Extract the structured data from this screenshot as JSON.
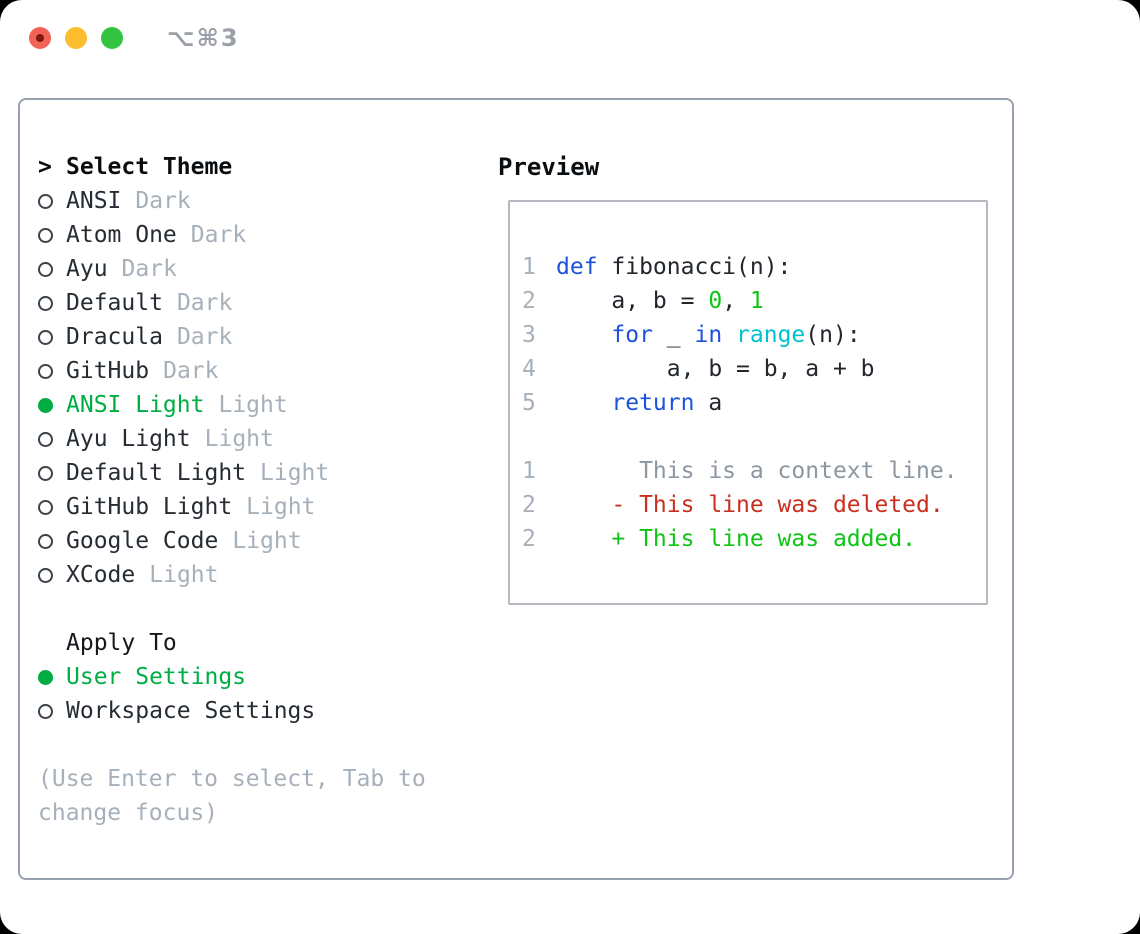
{
  "window": {
    "title_shortcut": "⌥⌘3"
  },
  "colors": {
    "ui_green": "#00ad43",
    "code_green": "#0ec414",
    "keyword_blue": "#1d52db",
    "function_cyan": "#00c2cb",
    "deleted_red": "#c92f1e",
    "muted_gray": "#a6b0ba",
    "context_gray": "#8d97a1",
    "text_dark": "#22272e",
    "panel_border": "#98a2ae",
    "preview_border": "#b4bac0",
    "traffic_red": "#f26257",
    "traffic_yellow": "#fcbd2e",
    "traffic_green": "#32c440"
  },
  "theme_selector": {
    "cursor": ">",
    "title": "Select Theme",
    "items": [
      {
        "name": "ANSI",
        "variant": "Dark",
        "selected": false
      },
      {
        "name": "Atom One",
        "variant": "Dark",
        "selected": false
      },
      {
        "name": "Ayu",
        "variant": "Dark",
        "selected": false
      },
      {
        "name": "Default",
        "variant": "Dark",
        "selected": false
      },
      {
        "name": "Dracula",
        "variant": "Dark",
        "selected": false
      },
      {
        "name": "GitHub",
        "variant": "Dark",
        "selected": false
      },
      {
        "name": "ANSI Light",
        "variant": "Light",
        "selected": true
      },
      {
        "name": "Ayu Light",
        "variant": "Light",
        "selected": false
      },
      {
        "name": "Default Light",
        "variant": "Light",
        "selected": false
      },
      {
        "name": "GitHub Light",
        "variant": "Light",
        "selected": false
      },
      {
        "name": "Google Code",
        "variant": "Light",
        "selected": false
      },
      {
        "name": "XCode",
        "variant": "Light",
        "selected": false
      }
    ]
  },
  "apply_to": {
    "title": "Apply To",
    "options": [
      {
        "label": "User Settings",
        "selected": true
      },
      {
        "label": "Workspace Settings",
        "selected": false
      }
    ]
  },
  "hint": "(Use Enter to select, Tab to change focus)",
  "preview": {
    "title": "Preview",
    "code_lines": [
      {
        "num": "1",
        "tokens": [
          [
            "kw",
            "def"
          ],
          [
            "plain",
            " fibonacci(n):"
          ]
        ]
      },
      {
        "num": "2",
        "tokens": [
          [
            "plain",
            "    a, b = "
          ],
          [
            "green",
            "0"
          ],
          [
            "plain",
            ", "
          ],
          [
            "green",
            "1"
          ]
        ]
      },
      {
        "num": "3",
        "tokens": [
          [
            "plain",
            "    "
          ],
          [
            "kw",
            "for"
          ],
          [
            "plain",
            " _ "
          ],
          [
            "kw",
            "in"
          ],
          [
            "plain",
            " "
          ],
          [
            "fn",
            "range"
          ],
          [
            "plain",
            "(n):"
          ]
        ]
      },
      {
        "num": "4",
        "tokens": [
          [
            "plain",
            "        a, b = b, a + b"
          ]
        ]
      },
      {
        "num": "5",
        "tokens": [
          [
            "plain",
            "    "
          ],
          [
            "kw",
            "return"
          ],
          [
            "plain",
            " a"
          ]
        ]
      },
      {
        "num": "",
        "tokens": []
      },
      {
        "num": "1",
        "tokens": [
          [
            "ctx",
            "      This is a context line."
          ]
        ]
      },
      {
        "num": "2",
        "tokens": [
          [
            "del",
            "    - This line was deleted."
          ]
        ]
      },
      {
        "num": "2",
        "tokens": [
          [
            "add",
            "    + This line was added."
          ]
        ]
      }
    ]
  }
}
